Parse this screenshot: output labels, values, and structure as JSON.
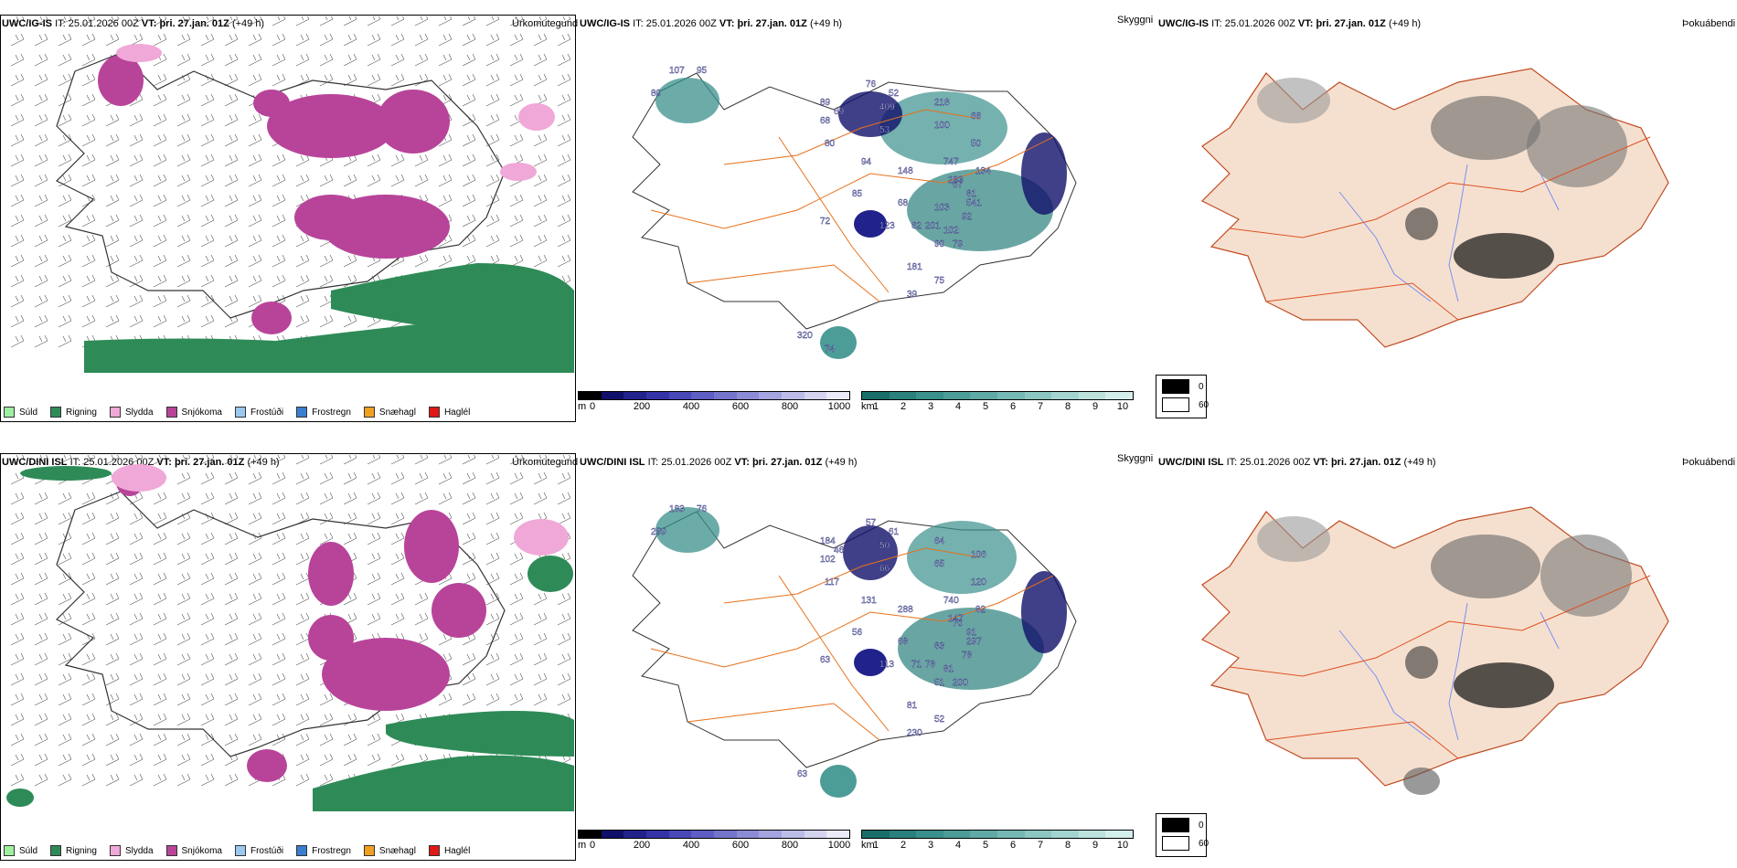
{
  "rows": [
    {
      "precip": {
        "model": "UWC/IG-IS",
        "it_label": "IT:",
        "it_value": "25.01.2026 00Z",
        "vt_label": "VT:",
        "vt_value": "þri. 27.jan. 01Z",
        "lead": "(+49 h)",
        "type": "Úrkomutegund"
      },
      "cloud": {
        "model": "UWC/IG-IS",
        "it_label": "IT:",
        "it_value": "25.01.2026 00Z",
        "vt_label": "VT:",
        "vt_value": "þri. 27.jan. 01Z",
        "lead": "(+49 h)",
        "type": "Skyggni"
      },
      "fog": {
        "model": "UWC/IG-IS",
        "it_label": "IT:",
        "it_value": "25.01.2026 00Z",
        "vt_label": "VT:",
        "vt_value": "þri. 27.jan. 01Z",
        "lead": "(+49 h)",
        "type": "Þokuábendi"
      },
      "map_labels": [
        "107",
        "95",
        "80",
        "89",
        "76",
        "52",
        "409",
        "218",
        "68",
        "69",
        "53",
        "100",
        "66",
        "80",
        "50",
        "94",
        "747",
        "283",
        "148",
        "134",
        "541",
        "81",
        "67",
        "85",
        "68",
        "103",
        "92",
        "72",
        "123",
        "62",
        "201",
        "102",
        "90",
        "79",
        "181",
        "75",
        "39",
        "320",
        "74"
      ]
    },
    {
      "precip": {
        "model": "UWC/DINI ISL",
        "it_label": "IT:",
        "it_value": "25.01.2026 00Z",
        "vt_label": "VT:",
        "vt_value": "þri. 27.jan. 01Z",
        "lead": "(+49 h)",
        "type": "Úrkomutegund"
      },
      "cloud": {
        "model": "UWC/DINI ISL",
        "it_label": "IT:",
        "it_value": "25.01.2026 00Z",
        "vt_label": "VT:",
        "vt_value": "þri. 27.jan. 01Z",
        "lead": "(+49 h)",
        "type": "Skyggni"
      },
      "fog": {
        "model": "UWC/DINI ISL",
        "it_label": "IT:",
        "it_value": "25.01.2026 00Z",
        "vt_label": "VT:",
        "vt_value": "þri. 27.jan. 01Z",
        "lead": "(+49 h)",
        "type": "Þokuábendi"
      },
      "map_labels": [
        "183",
        "76",
        "259",
        "184",
        "57",
        "61",
        "50",
        "64",
        "102",
        "46",
        "66",
        "65",
        "106",
        "117",
        "120",
        "131",
        "740",
        "147",
        "288",
        "82",
        "297",
        "91",
        "70",
        "56",
        "68",
        "83",
        "78",
        "63",
        "113",
        "71",
        "78",
        "81",
        "51",
        "200",
        "81",
        "52",
        "230",
        "63"
      ]
    }
  ],
  "precip_legend": [
    {
      "label": "Súld",
      "color": "#9ef0a0"
    },
    {
      "label": "Rigning",
      "color": "#2e8b57"
    },
    {
      "label": "Slydda",
      "color": "#f0a8d8"
    },
    {
      "label": "Snjókoma",
      "color": "#b8449a"
    },
    {
      "label": "Frostúði",
      "color": "#9cc8f0"
    },
    {
      "label": "Frostregn",
      "color": "#3a7ed0"
    },
    {
      "label": "Snæhagl",
      "color": "#f0a020"
    },
    {
      "label": "Haglél",
      "color": "#e01818"
    }
  ],
  "terrain_scale": {
    "unit": "m",
    "ticks": [
      "0",
      "200",
      "400",
      "600",
      "800",
      "1000"
    ],
    "colors": [
      "#000000",
      "#10106a",
      "#22228c",
      "#3434a8",
      "#4848b8",
      "#5e5ec4",
      "#7474cc",
      "#8c8cd6",
      "#a4a4e0",
      "#bcbce8",
      "#d4d4f0",
      "#eaeaf8"
    ]
  },
  "visibility_scale": {
    "unit": "km",
    "ticks": [
      "1",
      "2",
      "3",
      "4",
      "5",
      "6",
      "7",
      "8",
      "9",
      "10"
    ],
    "colors": [
      "#1a6e6a",
      "#2a807c",
      "#3a908c",
      "#4c9c98",
      "#60aaa6",
      "#76b8b4",
      "#8cc6c2",
      "#a4d4d0",
      "#bce2de",
      "#d4eeec"
    ]
  },
  "fog_key": {
    "items": [
      {
        "label": "0",
        "color": "#000000"
      },
      {
        "label": "60",
        "color": "#ffffff"
      }
    ]
  },
  "colors": {
    "land_fill": "#f5e0d0",
    "road": "#e8701a",
    "river": "#7a8ff0",
    "rain": "#2e8b57",
    "snow": "#b8449a",
    "sleet": "#f0a8d8"
  }
}
